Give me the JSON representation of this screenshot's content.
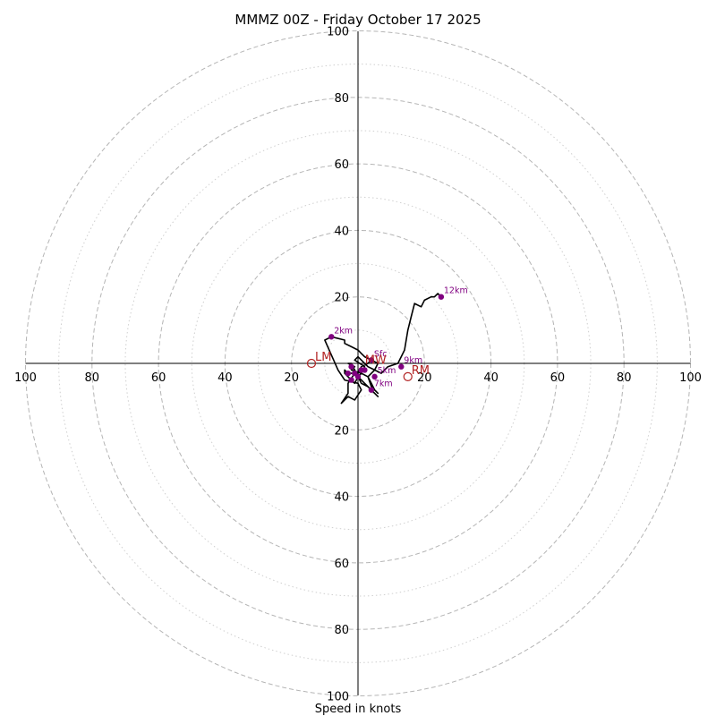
{
  "chart_data": {
    "type": "scatter",
    "title": "MMMZ 00Z - Friday October 17 2025",
    "xlabel": "Speed in knots",
    "ylabel": "",
    "xlim": [
      -100,
      100
    ],
    "ylim": [
      -100,
      100
    ],
    "grid": "polar rings",
    "rings_major": [
      20,
      40,
      60,
      80,
      100
    ],
    "rings_minor": [
      10,
      30,
      50,
      70,
      90
    ],
    "ticks_x": [
      {
        "value": -100,
        "label": "100"
      },
      {
        "value": -80,
        "label": "80"
      },
      {
        "value": -60,
        "label": "60"
      },
      {
        "value": -40,
        "label": "40"
      },
      {
        "value": -20,
        "label": "20"
      },
      {
        "value": 20,
        "label": "20"
      },
      {
        "value": 40,
        "label": "40"
      },
      {
        "value": 60,
        "label": "60"
      },
      {
        "value": 80,
        "label": "80"
      },
      {
        "value": 100,
        "label": "100"
      }
    ],
    "ticks_y": [
      {
        "value": 100,
        "label": "100"
      },
      {
        "value": 80,
        "label": "80"
      },
      {
        "value": 60,
        "label": "60"
      },
      {
        "value": 40,
        "label": "40"
      },
      {
        "value": 20,
        "label": "20"
      },
      {
        "value": -20,
        "label": "20"
      },
      {
        "value": -40,
        "label": "40"
      },
      {
        "value": -60,
        "label": "60"
      },
      {
        "value": -80,
        "label": "80"
      },
      {
        "value": -100,
        "label": "100"
      }
    ],
    "hodograph_line": {
      "color": "#000000",
      "u": [
        4,
        3,
        1,
        0,
        -3,
        -4,
        -4,
        -3,
        -2,
        -1,
        0,
        1,
        -2,
        -1,
        -3,
        -2,
        -1,
        0,
        1,
        2,
        3,
        4,
        6,
        5,
        3,
        1,
        0,
        -1,
        -3,
        -3,
        -3,
        -5,
        -3,
        -1,
        1,
        0,
        -4,
        -6,
        -10,
        -8,
        -4,
        -4,
        -2,
        0,
        1,
        2,
        4,
        6,
        5,
        3,
        4,
        5,
        6,
        4,
        3,
        1,
        2,
        -1,
        0,
        1,
        3,
        5,
        7,
        9,
        12,
        14,
        15,
        16,
        17,
        19,
        20,
        22,
        23,
        24,
        25
      ],
      "v": [
        1,
        0,
        -1,
        -3,
        -3,
        -2,
        -3,
        -4,
        -5,
        -6,
        -4,
        -3,
        -2,
        -1,
        0,
        0,
        -2,
        -4,
        -5,
        -6,
        -7,
        -8,
        -10,
        -9,
        -7,
        -6,
        -4,
        -3,
        -6,
        -7,
        -9,
        -12,
        -10,
        -11,
        -8,
        -6,
        -5,
        -2,
        7,
        8,
        7,
        6,
        5,
        4,
        3,
        2,
        1,
        0,
        -2,
        -4,
        -6,
        -8,
        -9,
        -7,
        -4,
        -3,
        -1,
        1,
        2,
        1,
        -1,
        -2,
        -3,
        -1,
        0,
        4,
        10,
        14,
        18,
        17,
        19,
        20,
        20,
        21,
        20
      ]
    },
    "height_points": {
      "color": "#800080",
      "points": [
        {
          "label": "Sfc",
          "u": 4,
          "v": 1
        },
        {
          "label": "",
          "u": -3,
          "v": -3
        },
        {
          "label": "",
          "u": -2,
          "v": -5
        },
        {
          "label": "",
          "u": -1,
          "v": -3
        },
        {
          "label": "",
          "u": 1,
          "v": -2
        },
        {
          "label": "",
          "u": -2,
          "v": -1
        },
        {
          "label": "",
          "u": 0,
          "v": -4
        },
        {
          "label": "",
          "u": 2,
          "v": -2
        },
        {
          "label": "5km",
          "u": 5,
          "v": -4
        },
        {
          "label": "7km",
          "u": 4,
          "v": -8
        },
        {
          "label": "2km",
          "u": -8,
          "v": 8
        },
        {
          "label": "9km",
          "u": 13,
          "v": -1
        },
        {
          "label": "12km",
          "u": 25,
          "v": 20
        }
      ]
    },
    "storm_motion": {
      "color": "#b22222",
      "points": [
        {
          "label": "LM",
          "u": -14,
          "v": 0
        },
        {
          "label": "RM",
          "u": 15,
          "v": -4
        },
        {
          "label": "MW",
          "u": 1,
          "v": -1
        }
      ]
    }
  }
}
